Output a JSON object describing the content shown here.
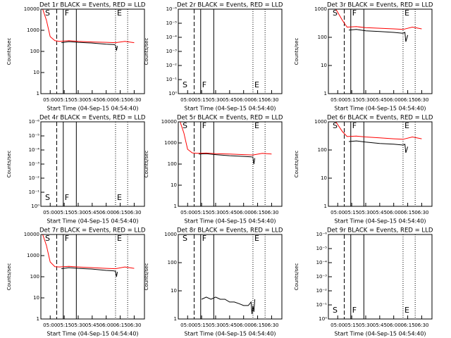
{
  "chart_data": [
    {
      "type": "line",
      "title": "Det 1r BLACK = Events, RED = LLD",
      "xlabel": "Start Time (04-Sep-15 04:54:40)",
      "ylabel": "Counts/sec",
      "ylog": true,
      "ylim": [
        1,
        10000
      ],
      "yticks": [
        1,
        10,
        100,
        1000,
        10000
      ],
      "series": [
        {
          "name": "Events",
          "color": "#000000",
          "x": [
            "05:12",
            "05:20",
            "05:30",
            "05:45",
            "06:00",
            "06:08",
            "06:10",
            "06:11",
            "06:12"
          ],
          "values": [
            260,
            290,
            270,
            250,
            220,
            210,
            200,
            110,
            180
          ]
        },
        {
          "name": "LLD",
          "color": "#ff0000",
          "x": [
            "04:52",
            "04:56",
            "05:00",
            "05:05",
            "05:10",
            "05:20",
            "05:30",
            "05:45",
            "06:00",
            "06:10",
            "06:20",
            "06:30"
          ],
          "values": [
            10000,
            3000,
            500,
            320,
            300,
            320,
            300,
            280,
            270,
            260,
            300,
            260
          ]
        }
      ]
    },
    {
      "type": "line",
      "title": "Det 2r BLACK = Events, RED = LLD",
      "xlabel": "Start Time (04-Sep-15 04:54:40)",
      "ylabel": "Counts/sec",
      "ylog": true,
      "ylim": [
        1,
        1e-06
      ],
      "yticks": [
        {
          "value": 1,
          "label": "10⁰"
        },
        {
          "value": 0.1,
          "label": "10⁻¹"
        },
        {
          "value": 0.01,
          "label": "10⁻²"
        },
        {
          "value": 0.001,
          "label": "10⁻³"
        },
        {
          "value": 0.0001,
          "label": "10⁻⁴"
        },
        {
          "value": 1e-05,
          "label": "10⁻⁵"
        },
        {
          "value": 1e-06,
          "label": "10⁻⁶"
        }
      ],
      "series": []
    },
    {
      "type": "line",
      "title": "Det 3r BLACK = Events, RED = LLD",
      "xlabel": "Start Time (04-Sep-15 04:54:40)",
      "ylabel": "Counts/sec",
      "ylog": true,
      "ylim": [
        1,
        1000
      ],
      "yticks": [
        1,
        10,
        100,
        1000
      ],
      "series": [
        {
          "name": "Events",
          "color": "#000000",
          "x": [
            "05:12",
            "05:20",
            "05:30",
            "05:45",
            "06:00",
            "06:10",
            "06:12",
            "06:13",
            "06:15"
          ],
          "values": [
            180,
            190,
            170,
            160,
            150,
            140,
            150,
            70,
            120
          ]
        },
        {
          "name": "LLD",
          "color": "#ff0000",
          "x": [
            "04:58",
            "05:05",
            "05:10",
            "05:20",
            "05:30",
            "05:45",
            "06:00",
            "06:10",
            "06:20",
            "06:30"
          ],
          "values": [
            1000,
            400,
            230,
            240,
            220,
            210,
            200,
            190,
            230,
            200
          ]
        }
      ]
    },
    {
      "type": "line",
      "title": "Det 4r BLACK = Events, RED = LLD",
      "xlabel": "Start Time (04-Sep-15 04:54:40)",
      "ylabel": "Counts/sec",
      "ylog": true,
      "ylim": [
        1,
        1e-06
      ],
      "yticks": [
        {
          "value": 1,
          "label": "10⁰"
        },
        {
          "value": 0.1,
          "label": "10⁻¹"
        },
        {
          "value": 0.01,
          "label": "10⁻²"
        },
        {
          "value": 0.001,
          "label": "10⁻³"
        },
        {
          "value": 0.0001,
          "label": "10⁻⁴"
        },
        {
          "value": 1e-05,
          "label": "10⁻⁵"
        },
        {
          "value": 1e-06,
          "label": "10⁻⁶"
        }
      ],
      "series": []
    },
    {
      "type": "line",
      "title": "Det 5r BLACK = Events, RED = LLD",
      "xlabel": "Start Time (04-Sep-15 04:54:40)",
      "ylabel": "Counts/sec",
      "ylog": true,
      "ylim": [
        1,
        10000
      ],
      "yticks": [
        1,
        10,
        100,
        1000,
        10000
      ],
      "series": [
        {
          "name": "Events",
          "color": "#000000",
          "x": [
            "05:12",
            "05:20",
            "05:30",
            "05:45",
            "06:00",
            "06:08",
            "06:10",
            "06:11",
            "06:12"
          ],
          "values": [
            300,
            310,
            280,
            250,
            230,
            220,
            210,
            100,
            190
          ]
        },
        {
          "name": "LLD",
          "color": "#ff0000",
          "x": [
            "04:52",
            "04:56",
            "05:00",
            "05:05",
            "05:10",
            "05:20",
            "05:30",
            "05:45",
            "06:00",
            "06:10",
            "06:20",
            "06:30"
          ],
          "values": [
            10000,
            3000,
            500,
            340,
            320,
            330,
            310,
            300,
            280,
            270,
            320,
            300
          ]
        }
      ]
    },
    {
      "type": "line",
      "title": "Det 6r BLACK = Events, RED = LLD",
      "xlabel": "Start Time (04-Sep-15 04:54:40)",
      "ylabel": "Counts/sec",
      "ylog": true,
      "ylim": [
        1,
        1000
      ],
      "yticks": [
        1,
        10,
        100,
        1000
      ],
      "series": [
        {
          "name": "Events",
          "color": "#000000",
          "x": [
            "05:12",
            "05:20",
            "05:30",
            "05:45",
            "06:00",
            "06:10",
            "06:12",
            "06:13",
            "06:15"
          ],
          "values": [
            200,
            210,
            190,
            170,
            160,
            150,
            160,
            80,
            130
          ]
        },
        {
          "name": "LLD",
          "color": "#ff0000",
          "x": [
            "04:58",
            "05:05",
            "05:10",
            "05:20",
            "05:30",
            "05:45",
            "06:00",
            "06:10",
            "06:20",
            "06:30"
          ],
          "values": [
            1000,
            450,
            300,
            310,
            290,
            270,
            250,
            240,
            290,
            250
          ]
        }
      ]
    },
    {
      "type": "line",
      "title": "Det 7r BLACK = Events, RED = LLD",
      "xlabel": "Start Time (04-Sep-15 04:54:40)",
      "ylabel": "Counts/sec",
      "ylog": true,
      "ylim": [
        1,
        10000
      ],
      "yticks": [
        1,
        10,
        100,
        1000,
        10000
      ],
      "series": [
        {
          "name": "Events",
          "color": "#000000",
          "x": [
            "05:12",
            "05:20",
            "05:30",
            "05:45",
            "06:00",
            "06:08",
            "06:10",
            "06:11",
            "06:12"
          ],
          "values": [
            240,
            270,
            250,
            230,
            200,
            190,
            180,
            100,
            170
          ]
        },
        {
          "name": "LLD",
          "color": "#ff0000",
          "x": [
            "04:52",
            "04:56",
            "05:00",
            "05:05",
            "05:10",
            "05:20",
            "05:30",
            "05:45",
            "06:00",
            "06:10",
            "06:20",
            "06:30"
          ],
          "values": [
            10000,
            3000,
            500,
            300,
            290,
            310,
            290,
            270,
            250,
            240,
            290,
            250
          ]
        }
      ]
    },
    {
      "type": "line",
      "title": "Det 8r BLACK = Events, RED = LLD",
      "xlabel": "Start Time (04-Sep-15 04:54:40)",
      "ylabel": "Counts/sec",
      "ylog": true,
      "ylim": [
        1,
        1000
      ],
      "yticks": [
        1,
        10,
        100,
        1000
      ],
      "series": [
        {
          "name": "Events",
          "color": "#000000",
          "x": [
            "05:15",
            "05:20",
            "05:25",
            "05:30",
            "05:35",
            "05:40",
            "05:45",
            "05:50",
            "05:55",
            "06:00",
            "06:05",
            "06:08",
            "06:09",
            "06:10",
            "06:11",
            "06:12"
          ],
          "values": [
            5,
            6,
            5,
            6,
            5,
            5,
            4,
            4,
            3.5,
            3,
            3,
            4,
            1.5,
            3,
            1.8,
            5
          ]
        }
      ]
    },
    {
      "type": "line",
      "title": "Det 9r BLACK = Events, RED = LLD",
      "xlabel": "Start Time (04-Sep-15 04:54:40)",
      "ylabel": "Counts/sec",
      "ylog": true,
      "ylim": [
        1,
        1e-06
      ],
      "yticks": [
        {
          "value": 1,
          "label": "10⁰"
        },
        {
          "value": 0.1,
          "label": "10⁻¹"
        },
        {
          "value": 0.01,
          "label": "10⁻²"
        },
        {
          "value": 0.001,
          "label": "10⁻³"
        },
        {
          "value": 0.0001,
          "label": "10⁻⁴"
        },
        {
          "value": 1e-05,
          "label": "10⁻⁵"
        },
        {
          "value": 1e-06,
          "label": "10⁻⁶"
        }
      ],
      "series": []
    }
  ],
  "xlim": [
    "04:50",
    "06:41"
  ],
  "xticks": [
    "05:00",
    "05:15",
    "05:30",
    "05:45",
    "06:00",
    "06:15",
    "06:30"
  ],
  "markers": [
    {
      "x": "04:53",
      "label": "S"
    },
    {
      "x": "05:07",
      "style": "dashed"
    },
    {
      "x": "05:14",
      "style": "solid",
      "label": "F"
    },
    {
      "x": "05:28",
      "style": "solid"
    },
    {
      "x": "06:10",
      "style": "dotted",
      "label": "E"
    },
    {
      "x": "06:23",
      "style": "dotted"
    }
  ]
}
